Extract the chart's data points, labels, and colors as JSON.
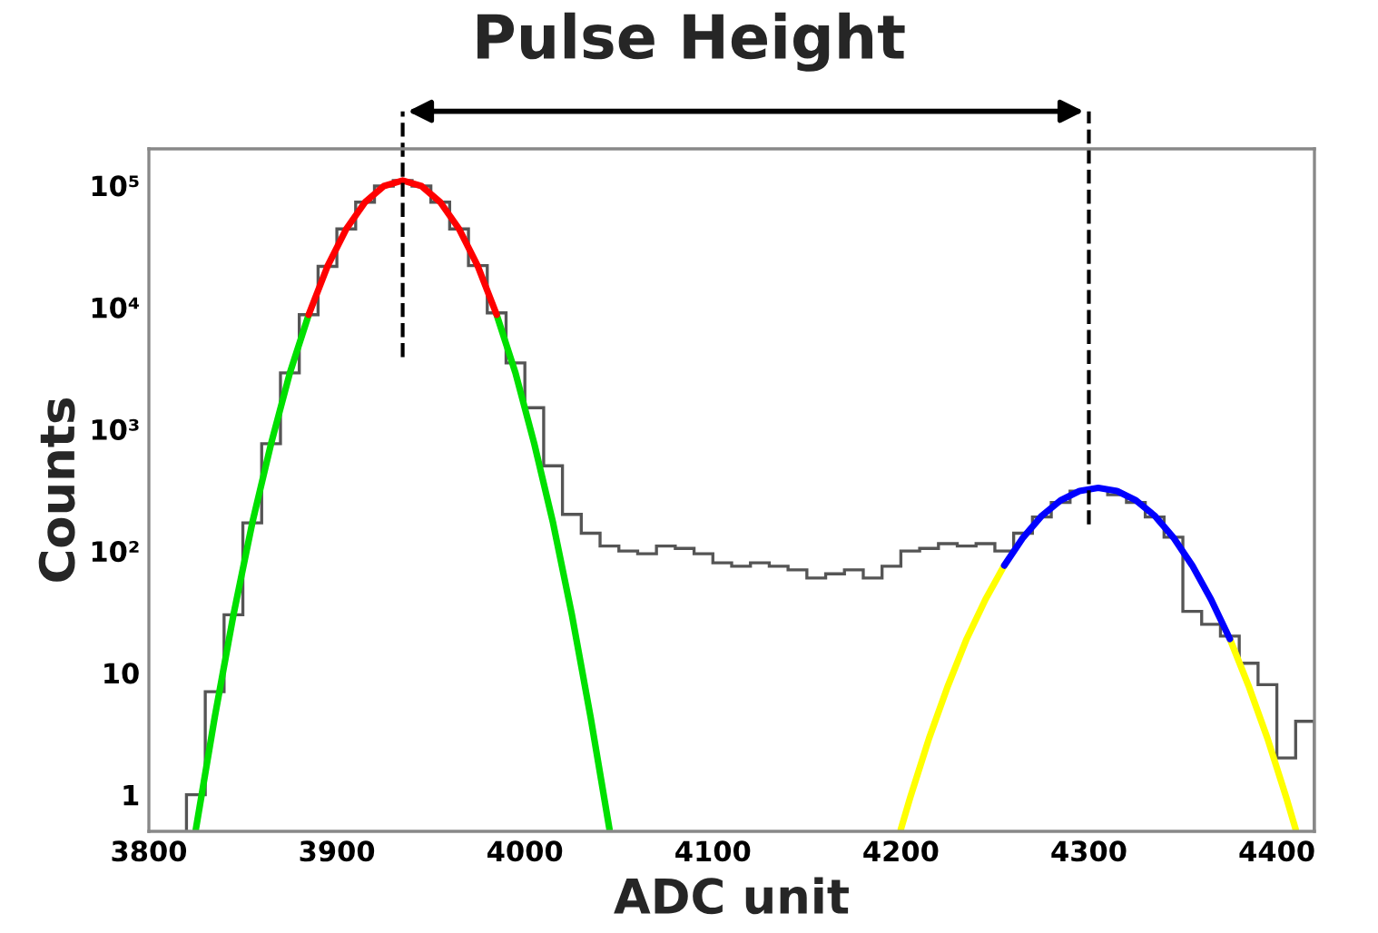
{
  "chart_data": {
    "type": "histogram",
    "title": "Pulse Height",
    "xlabel": "ADC unit",
    "ylabel": "Counts",
    "bins": [
      3820,
      3830,
      3840,
      3850,
      3860,
      3870,
      3880,
      3890,
      3900,
      3910,
      3920,
      3930,
      3940,
      3950,
      3960,
      3970,
      3980,
      3990,
      4000,
      4010,
      4020,
      4030,
      4040,
      4050,
      4060,
      4070,
      4080,
      4090,
      4100,
      4110,
      4120,
      4130,
      4140,
      4150,
      4160,
      4170,
      4180,
      4190,
      4200,
      4210,
      4220,
      4230,
      4240,
      4250,
      4260,
      4270,
      4280,
      4290,
      4300,
      4310,
      4320,
      4330,
      4340,
      4350,
      4360,
      4370,
      4380,
      4390,
      4400,
      4410,
      4420
    ],
    "values": [
      1,
      7,
      30,
      170,
      760,
      2900,
      8700,
      21700,
      44000,
      73000,
      99000,
      110000,
      99000,
      73000,
      44000,
      22000,
      9000,
      3500,
      1500,
      500,
      200,
      140,
      110,
      100,
      95,
      110,
      105,
      95,
      80,
      75,
      80,
      75,
      70,
      60,
      65,
      70,
      60,
      75,
      100,
      105,
      115,
      110,
      115,
      100,
      140,
      190,
      250,
      310,
      320,
      290,
      250,
      190,
      130,
      32,
      25,
      20,
      12,
      8,
      2,
      4
    ],
    "color": "#555555",
    "series": [
      {
        "type": "line",
        "color": "#00e000",
        "x": [
          3825,
          3835,
          3845,
          3855,
          3865,
          3875,
          3885,
          3895,
          3905,
          3915,
          3925,
          3935,
          3945,
          3955,
          3965,
          3975,
          3985,
          3995,
          4005,
          4015,
          4025,
          4035,
          4045
        ],
        "values": [
          0.52,
          4.3,
          30,
          170,
          760,
          2900,
          8700,
          null,
          null,
          null,
          null,
          null,
          null,
          null,
          null,
          null,
          8700,
          2900,
          760,
          170,
          30,
          4.3,
          0.52
        ]
      },
      {
        "type": "line",
        "color": "#ff0000",
        "x": [
          3885,
          3895,
          3905,
          3915,
          3925,
          3935,
          3945,
          3955,
          3965,
          3975,
          3985
        ],
        "values": [
          8700,
          21700,
          44000,
          73000,
          99000,
          110000,
          99000,
          73000,
          44000,
          21700,
          8700
        ]
      },
      {
        "type": "line",
        "color": "#ffff00",
        "x": [
          4200,
          4205,
          4215,
          4225,
          4235,
          4245,
          4255,
          4265,
          4275,
          4285,
          4295,
          4305,
          4315,
          4325,
          4335,
          4345,
          4355,
          4365,
          4375,
          4385,
          4395,
          4405,
          4410
        ],
        "values": [
          0.52,
          0.95,
          2.9,
          7.8,
          19,
          40,
          76,
          null,
          null,
          null,
          null,
          null,
          null,
          null,
          null,
          null,
          null,
          null,
          19,
          7.8,
          2.9,
          0.95,
          0.52
        ]
      },
      {
        "type": "line",
        "color": "#0000ff",
        "x": [
          4255,
          4265,
          4275,
          4285,
          4295,
          4305,
          4315,
          4325,
          4335,
          4345,
          4355,
          4365,
          4375
        ],
        "values": [
          76,
          129,
          195,
          261,
          311,
          330,
          311,
          261,
          195,
          129,
          76,
          40,
          19
        ]
      }
    ],
    "log": "y",
    "xlim": [
      3800,
      4420
    ],
    "ylim": [
      0.5,
      200000
    ],
    "xticks": [
      3800,
      3900,
      4000,
      4100,
      4200,
      4300,
      4400
    ],
    "yticks": [
      {
        "value": 1,
        "label": "1"
      },
      {
        "value": 10,
        "label": "10"
      },
      {
        "value": 100,
        "label": "10²"
      },
      {
        "value": 1000,
        "label": "10³"
      },
      {
        "value": 10000,
        "label": "10⁴"
      },
      {
        "value": 100000,
        "label": "10⁵"
      }
    ],
    "ref_lines": [
      {
        "axis": "x",
        "value": 3935,
        "color": "#000000",
        "line_style": "dashed"
      },
      {
        "axis": "x",
        "value": 4300,
        "color": "#000000",
        "line_style": "dashed"
      }
    ],
    "grid": false,
    "legend": false,
    "line_style": "solid",
    "marker": "none"
  }
}
